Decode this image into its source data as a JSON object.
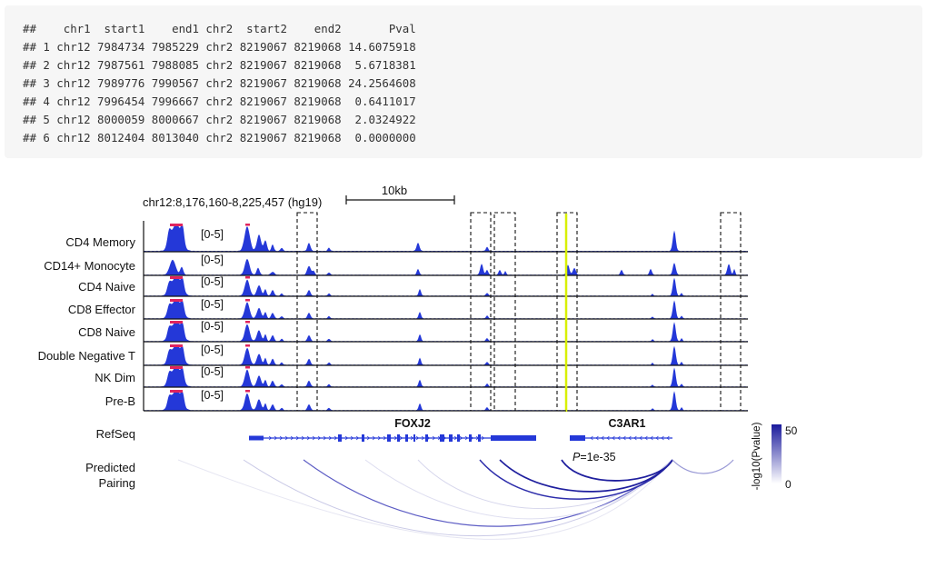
{
  "code_output": {
    "lines": [
      "##    chr1  start1    end1 chr2  start2    end2       Pval",
      "## 1 chr12 7984734 7985229 chr2 8219067 8219068 14.6075918",
      "## 2 chr12 7987561 7988085 chr2 8219067 8219068  5.6718381",
      "## 3 chr12 7989776 7990567 chr2 8219067 8219068 24.2564608",
      "## 4 chr12 7996454 7996667 chr2 8219067 8219068  0.6411017",
      "## 5 chr12 8000059 8000667 chr2 8219067 8219068  2.0324922",
      "## 6 chr12 8012404 8013040 chr2 8219067 8219068  0.0000000"
    ]
  },
  "figure": {
    "region_label": "chr12:8,176,160-8,225,457 (hg19)",
    "scale_label": "10kb",
    "track_range": "[0-5]",
    "tracks": [
      {
        "name": "CD4 Memory",
        "profile": "cd4m"
      },
      {
        "name": "CD14+ Monocyte",
        "profile": "mono"
      },
      {
        "name": "CD4 Naive",
        "profile": "std"
      },
      {
        "name": "CD8 Effector",
        "profile": "std"
      },
      {
        "name": "CD8 Naive",
        "profile": "std"
      },
      {
        "name": "Double Negative T",
        "profile": "std"
      },
      {
        "name": "NK Dim",
        "profile": "std"
      },
      {
        "name": "Pre-B",
        "profile": "std"
      }
    ],
    "refseq_label": "RefSeq",
    "genes": [
      "FOXJ2",
      "C3AR1"
    ],
    "pairing_label_line1": "Predicted",
    "pairing_label_line2": "Pairing",
    "pvalue_prefix": "P",
    "pvalue_suffix": "=1e-35",
    "colorbar_max": "50",
    "colorbar_min": "0",
    "colorbar_label": "-log10(Pvalue)",
    "colors": {
      "signal": "#2438d8",
      "peak_top": "#e0245e",
      "highlight": "#d8f000",
      "arc_strong": "#1f1f9e",
      "colorbar_top": "#1a1a9c"
    }
  }
}
